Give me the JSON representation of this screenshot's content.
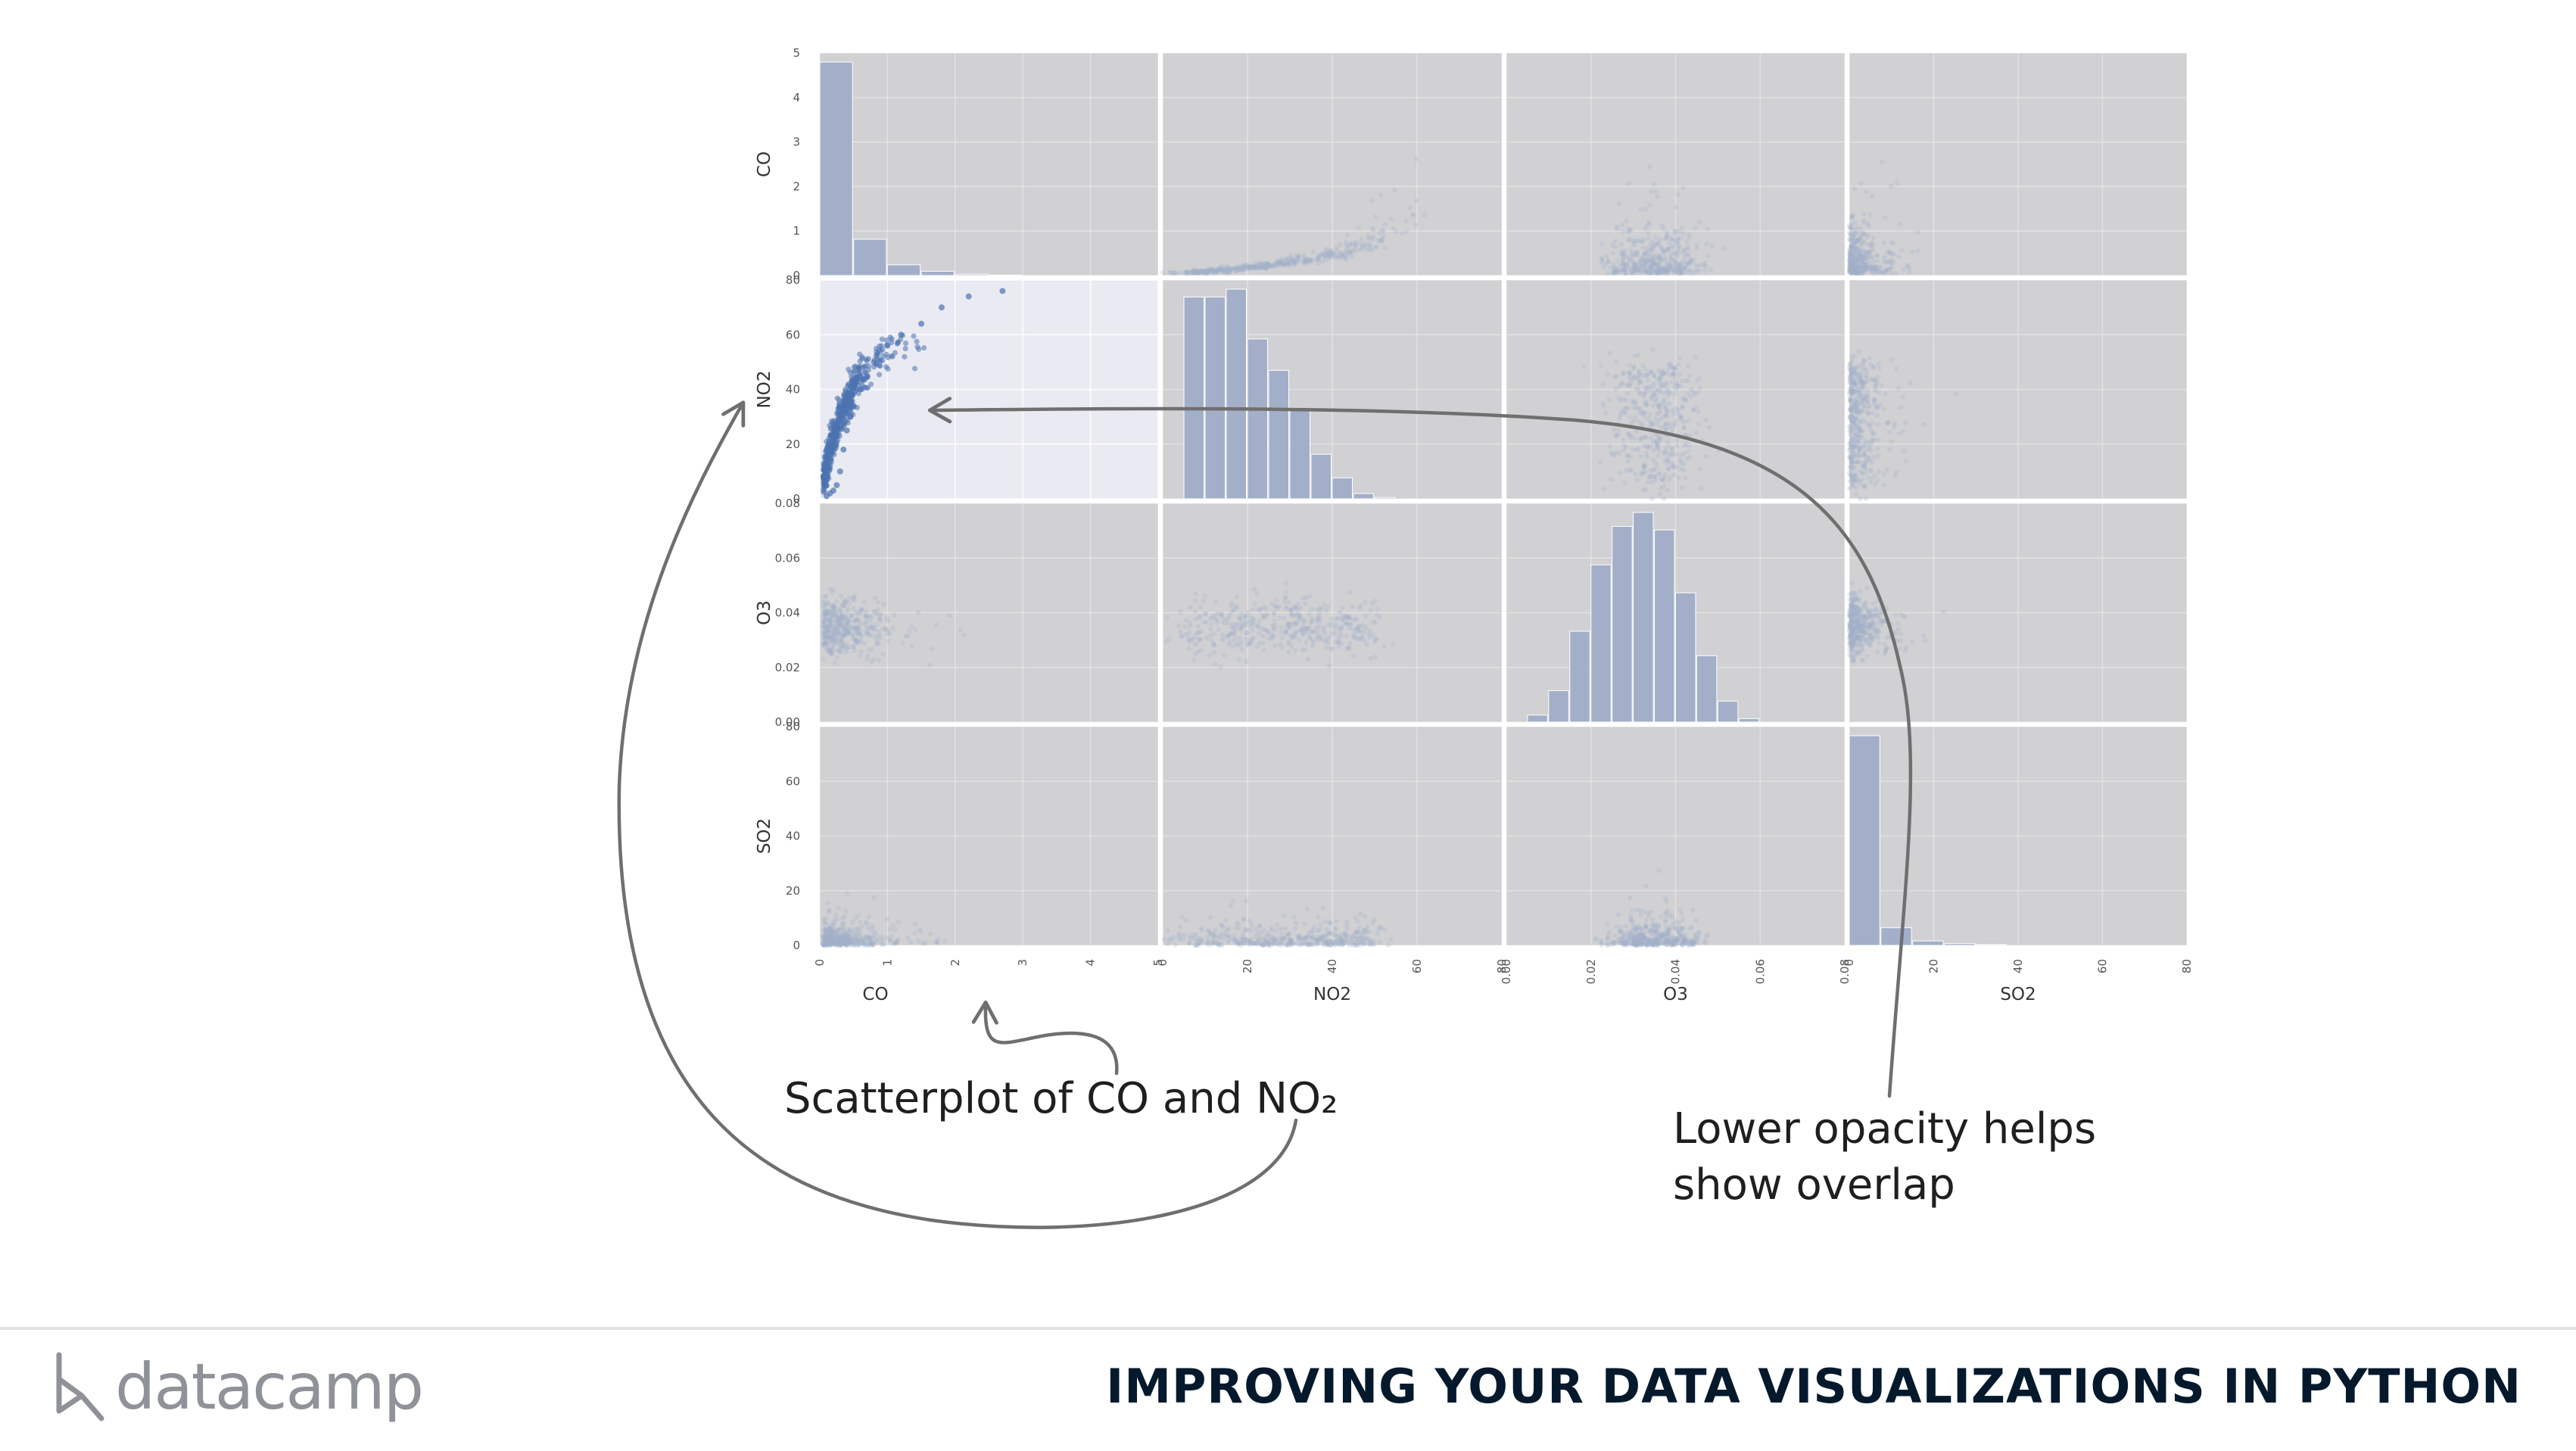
{
  "slide": {
    "annotation_scatter": "Scatterplot of CO and NO₂",
    "annotation_opacity_line1": "Lower opacity helps",
    "annotation_opacity_line2": "show overlap",
    "brand_name": "datacamp",
    "course_title": "IMPROVING YOUR DATA VISUALIZATIONS IN PYTHON"
  },
  "colors": {
    "panel_bg": "#d1d1d3",
    "highlight_bg": "#eaebf2",
    "muted_series": "#a3afc9",
    "highlight_series": "#4c72b0",
    "arrow": "#6f6f6f"
  },
  "chart_data": {
    "type": "scatter",
    "subtype": "scatter-matrix",
    "variables": [
      "CO",
      "NO2",
      "O3",
      "SO2"
    ],
    "axes": {
      "CO": {
        "range": [
          0,
          5
        ],
        "ticks": [
          0,
          1,
          2,
          3,
          4,
          5
        ],
        "tick_labels": [
          "0",
          "1",
          "2",
          "3",
          "4",
          "5"
        ]
      },
      "NO2": {
        "range": [
          0,
          80
        ],
        "ticks": [
          0,
          20,
          40,
          60,
          80
        ],
        "tick_labels": [
          "0",
          "20",
          "40",
          "60",
          "80"
        ]
      },
      "O3": {
        "range": [
          0,
          0.08
        ],
        "ticks": [
          0,
          0.02,
          0.04,
          0.06,
          0.08
        ],
        "tick_labels": [
          "0.00",
          "0.02",
          "0.04",
          "0.06",
          "0.08"
        ]
      },
      "SO2": {
        "range": [
          0,
          80
        ],
        "ticks": [
          0,
          20,
          40,
          60,
          80
        ],
        "tick_labels": [
          "0",
          "20",
          "40",
          "60",
          "80"
        ]
      }
    },
    "histograms": {
      "CO": {
        "bin_width": 0.5,
        "counts": [
          5.0,
          0.85,
          0.25,
          0.1,
          0.03,
          0.01,
          0,
          0,
          0,
          0
        ]
      },
      "NO2": {
        "bin_width": 5,
        "counts": [
          0,
          0.77,
          0.77,
          0.8,
          0.61,
          0.49,
          0.34,
          0.17,
          0.08,
          0.02,
          0.005,
          0,
          0,
          0,
          0,
          0
        ]
      },
      "O3": {
        "bin_width": 0.005,
        "counts": [
          0,
          0.02,
          0.09,
          0.26,
          0.45,
          0.56,
          0.6,
          0.55,
          0.37,
          0.19,
          0.06,
          0.01,
          0,
          0,
          0,
          0
        ]
      },
      "SO2": {
        "bin_width": 7.5,
        "counts": [
          0.95,
          0.08,
          0.02,
          0.008,
          0.004,
          0,
          0,
          0,
          0,
          0,
          0
        ]
      }
    },
    "highlighted_panel": {
      "x": "CO",
      "y": "NO2"
    },
    "co_vs_no2_sample": [
      {
        "x": 0.1,
        "y": 1
      },
      {
        "x": 0.15,
        "y": 2
      },
      {
        "x": 0.2,
        "y": 3
      },
      {
        "x": 0.25,
        "y": 5
      },
      {
        "x": 0.3,
        "y": 10
      },
      {
        "x": 0.35,
        "y": 18
      },
      {
        "x": 0.4,
        "y": 25
      },
      {
        "x": 0.45,
        "y": 30
      },
      {
        "x": 0.5,
        "y": 34
      },
      {
        "x": 0.6,
        "y": 40
      },
      {
        "x": 0.7,
        "y": 45
      },
      {
        "x": 0.8,
        "y": 50
      },
      {
        "x": 1.0,
        "y": 56
      },
      {
        "x": 1.2,
        "y": 60
      },
      {
        "x": 1.5,
        "y": 64
      },
      {
        "x": 1.8,
        "y": 70
      },
      {
        "x": 2.2,
        "y": 74
      },
      {
        "x": 2.7,
        "y": 76
      }
    ],
    "grid": true,
    "legend": "none"
  }
}
